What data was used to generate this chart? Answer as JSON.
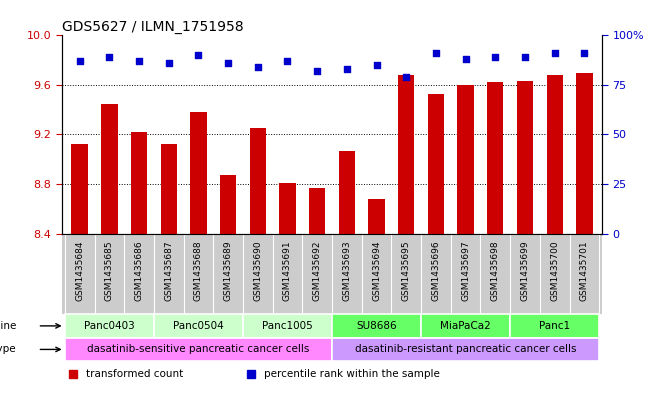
{
  "title": "GDS5627 / ILMN_1751958",
  "samples": [
    "GSM1435684",
    "GSM1435685",
    "GSM1435686",
    "GSM1435687",
    "GSM1435688",
    "GSM1435689",
    "GSM1435690",
    "GSM1435691",
    "GSM1435692",
    "GSM1435693",
    "GSM1435694",
    "GSM1435695",
    "GSM1435696",
    "GSM1435697",
    "GSM1435698",
    "GSM1435699",
    "GSM1435700",
    "GSM1435701"
  ],
  "bar_values": [
    9.12,
    9.45,
    9.22,
    9.12,
    9.38,
    8.87,
    9.25,
    8.81,
    8.77,
    9.07,
    8.68,
    9.68,
    9.53,
    9.6,
    9.62,
    9.63,
    9.68,
    9.7
  ],
  "percentile_values": [
    87,
    89,
    87,
    86,
    90,
    86,
    84,
    87,
    82,
    83,
    85,
    79,
    91,
    88,
    89,
    89,
    91,
    91
  ],
  "ylim_left": [
    8.4,
    10.0
  ],
  "ylim_right": [
    0,
    100
  ],
  "yticks_left": [
    8.4,
    8.8,
    9.2,
    9.6,
    10.0
  ],
  "yticks_right": [
    0,
    25,
    50,
    75,
    100
  ],
  "bar_color": "#cc0000",
  "dot_color": "#0000cc",
  "cell_lines": [
    {
      "name": "Panc0403",
      "start": 0,
      "end": 3,
      "color": "#ccffcc"
    },
    {
      "name": "Panc0504",
      "start": 3,
      "end": 6,
      "color": "#ccffcc"
    },
    {
      "name": "Panc1005",
      "start": 6,
      "end": 9,
      "color": "#ccffcc"
    },
    {
      "name": "SU8686",
      "start": 9,
      "end": 12,
      "color": "#66ff66"
    },
    {
      "name": "MiaPaCa2",
      "start": 12,
      "end": 15,
      "color": "#66ff66"
    },
    {
      "name": "Panc1",
      "start": 15,
      "end": 18,
      "color": "#66ff66"
    }
  ],
  "cell_types": [
    {
      "name": "dasatinib-sensitive pancreatic cancer cells",
      "start": 0,
      "end": 9,
      "color": "#ff88ff"
    },
    {
      "name": "dasatinib-resistant pancreatic cancer cells",
      "start": 9,
      "end": 18,
      "color": "#cc99ff"
    }
  ],
  "legend_items": [
    {
      "label": "transformed count",
      "color": "#cc0000"
    },
    {
      "label": "percentile rank within the sample",
      "color": "#0000cc"
    }
  ],
  "tick_label_color_left": "#cc0000",
  "tick_label_color_right": "#0000cc",
  "bar_width": 0.55,
  "background_color": "#ffffff",
  "xticklabel_bg": "#cccccc",
  "ylabel_left": "",
  "ylabel_right": ""
}
